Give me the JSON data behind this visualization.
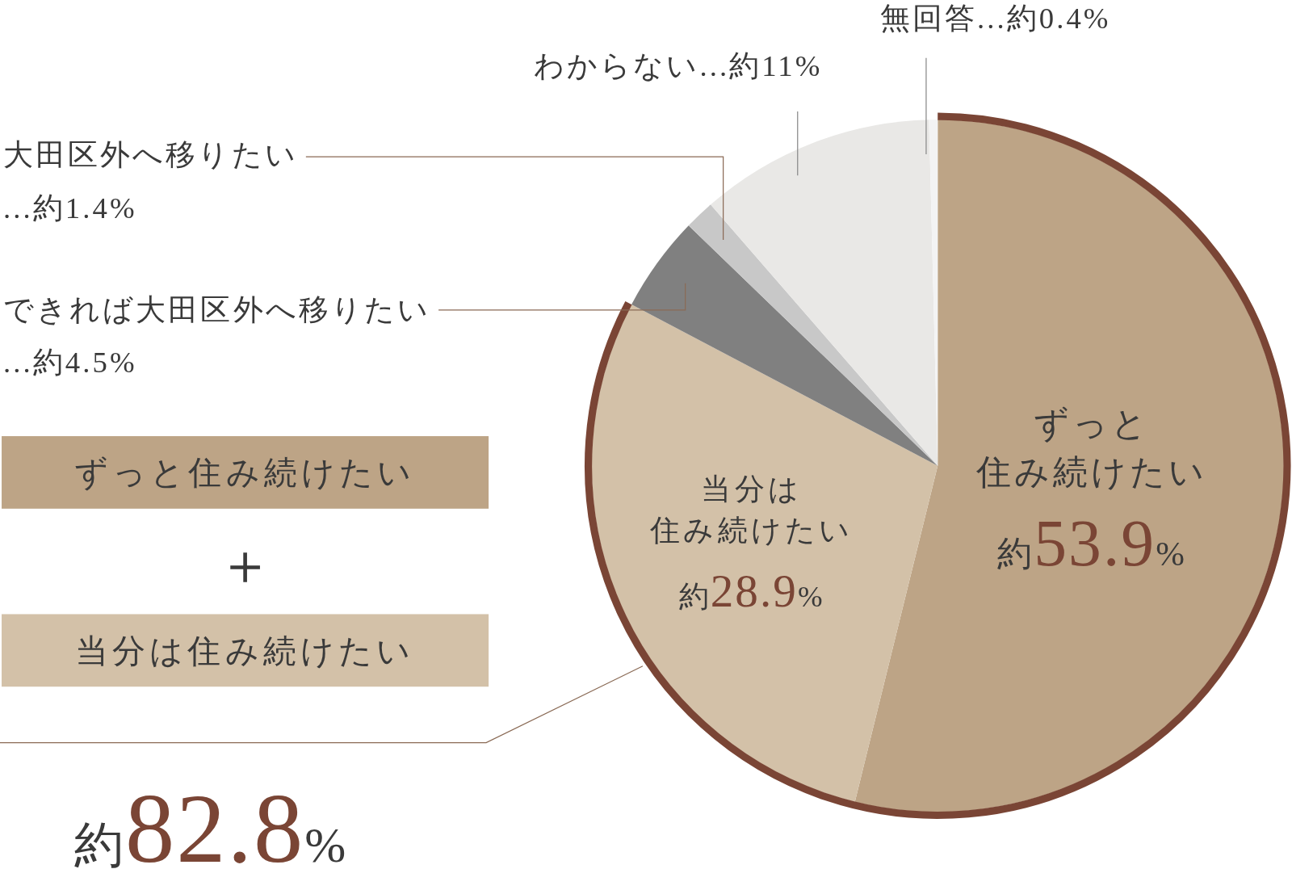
{
  "chart_data": {
    "type": "pie",
    "categories": [
      "ずっと住み続けたい",
      "当分は住み続けたい",
      "できれば大田区外へ移りたい",
      "大田区外へ移りたい",
      "わからない",
      "無回答"
    ],
    "values": [
      53.9,
      28.9,
      4.5,
      1.4,
      11,
      0.4
    ],
    "colors": [
      "#bda486",
      "#d3c1a8",
      "#808080",
      "#c8c8c8",
      "#e9e8e6",
      "#f3f3f3"
    ],
    "value_labels": [
      "約53.9%",
      "約28.9%",
      "...約4.5%",
      "...約1.4%",
      "...約11%",
      "...約0.4%"
    ],
    "annotations": [
      "ずっと住み続けたい",
      "＋",
      "当分は住み続けたい",
      "約82.8%"
    ]
  }
}
